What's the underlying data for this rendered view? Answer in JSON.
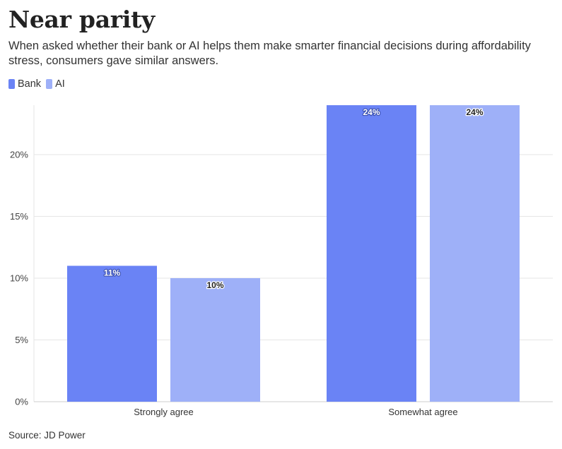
{
  "header": {
    "title": "Near parity",
    "subtitle": "When asked whether their bank or AI helps them make smarter financial decisions during affordability stress, consumers gave similar answers."
  },
  "footer": {
    "source": "Source: JD Power"
  },
  "colors": {
    "bank": "#6a83f5",
    "ai": "#9eb0f8",
    "grid": "#e6e6e6",
    "axis": "#cccccc"
  },
  "chart_data": {
    "type": "bar",
    "categories": [
      "Strongly agree",
      "Somewhat agree"
    ],
    "series": [
      {
        "name": "Bank",
        "values": [
          11,
          24
        ],
        "labels": [
          "11%",
          "24%"
        ]
      },
      {
        "name": "AI",
        "values": [
          10,
          24
        ],
        "labels": [
          "10%",
          "24%"
        ]
      }
    ],
    "yticks": [
      0,
      5,
      10,
      15,
      20
    ],
    "ytick_labels": [
      "0%",
      "5%",
      "10%",
      "15%",
      "20%"
    ],
    "ylim": [
      0,
      24
    ],
    "grid": true,
    "legend_position": "top-left",
    "xlabel": "",
    "ylabel": ""
  }
}
